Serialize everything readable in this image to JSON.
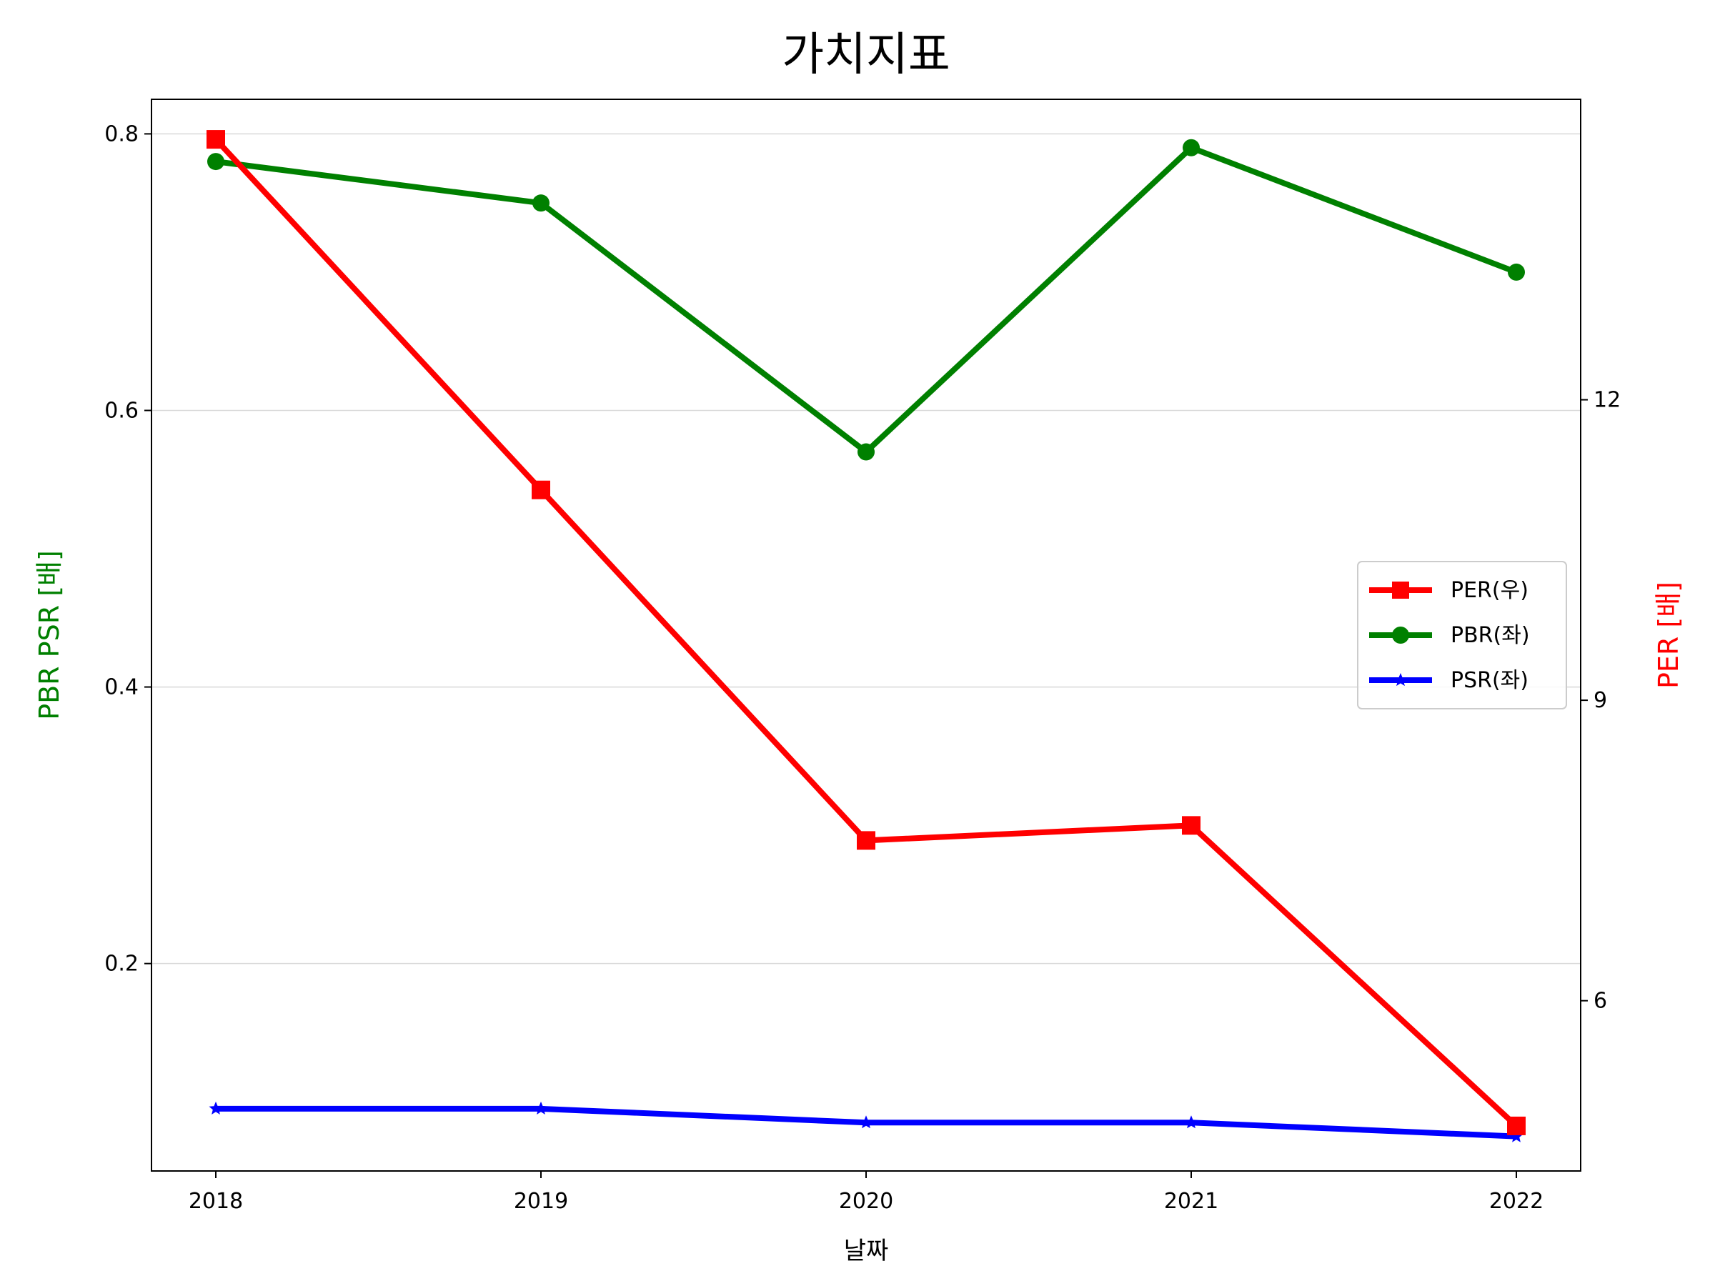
{
  "chart_data": {
    "type": "line",
    "title": "가치지표",
    "xlabel": "날짜",
    "ylabel_left": "PBR PSR [배]",
    "ylabel_right": "PER [배]",
    "categories": [
      "2018",
      "2019",
      "2020",
      "2021",
      "2022"
    ],
    "left_axis": {
      "ylim": [
        0.05,
        0.825
      ],
      "ticks": [
        0.2,
        0.4,
        0.6,
        0.8
      ],
      "tick_labels": [
        "0.2",
        "0.4",
        "0.6",
        "0.8"
      ],
      "color": "#008000"
    },
    "right_axis": {
      "ylim": [
        4.3,
        15.0
      ],
      "ticks": [
        6,
        9,
        12
      ],
      "tick_labels": [
        "6",
        "9",
        "12"
      ],
      "color": "#ff0000"
    },
    "grid": "horizontal (left axis)",
    "legend_position": "center-right",
    "series": [
      {
        "name": "PER(우)",
        "axis": "right",
        "color": "#ff0000",
        "marker": "square",
        "values": [
          14.6,
          11.1,
          7.6,
          7.75,
          4.75
        ]
      },
      {
        "name": "PBR(좌)",
        "axis": "left",
        "color": "#008000",
        "marker": "circle",
        "values": [
          0.78,
          0.75,
          0.57,
          0.79,
          0.7
        ]
      },
      {
        "name": "PSR(좌)",
        "axis": "left",
        "color": "#0000ff",
        "marker": "star",
        "values": [
          0.095,
          0.095,
          0.085,
          0.085,
          0.075
        ]
      }
    ]
  }
}
